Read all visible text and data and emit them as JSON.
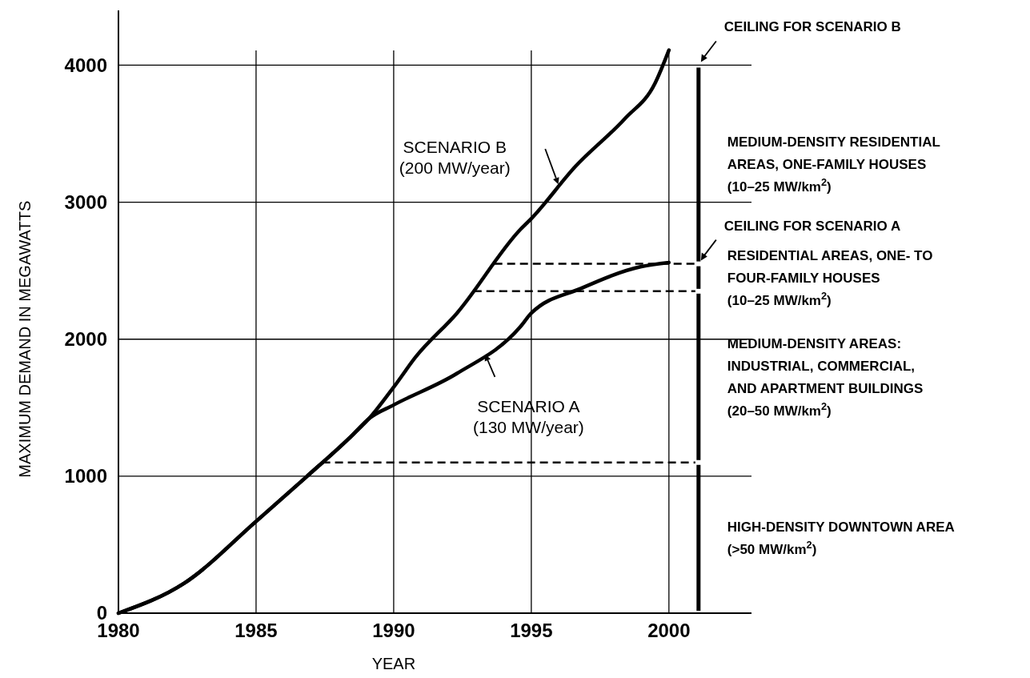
{
  "chart_data": {
    "type": "line",
    "xlabel": "YEAR",
    "ylabel": "MAXIMUM DEMAND IN MEGAWATTS",
    "xlim": [
      1980,
      2003
    ],
    "ylim": [
      0,
      4400
    ],
    "xticks": [
      1980,
      1985,
      1990,
      1995,
      2000
    ],
    "yticks": [
      0,
      1000,
      2000,
      3000,
      4000
    ],
    "grid": true,
    "series": [
      {
        "color": "#000000",
        "x": [
          1980,
          1982.4,
          1985,
          1986.8,
          1988.5,
          1989.1,
          1990,
          1992.3,
          1994.6,
          1995,
          1996.8,
          1999,
          2000
        ],
        "values": [
          0,
          220,
          670,
          990,
          1300,
          1420,
          1520,
          1750,
          2090,
          2190,
          2370,
          2530,
          2560
        ]
      },
      {
        "color": "#000000",
        "x": [
          1980,
          1982.4,
          1985,
          1986.8,
          1988.5,
          1989.1,
          1990,
          1990.8,
          1992.3,
          1994.6,
          1995,
          1996.6,
          1998.4,
          1999.5,
          2000
        ],
        "values": [
          0,
          220,
          670,
          990,
          1300,
          1420,
          1650,
          1870,
          2190,
          2800,
          2880,
          3260,
          3610,
          3870,
          4110
        ]
      }
    ],
    "ref_lines": [
      {
        "axis": "y",
        "value": 2550,
        "line_style": "dashed",
        "color": "#000000",
        "label": "CEILING FOR SCENARIO A"
      },
      {
        "axis": "y",
        "value": 2350,
        "line_style": "dashed",
        "color": "#000000"
      },
      {
        "axis": "y",
        "value": 1100,
        "line_style": "dashed",
        "color": "#000000"
      }
    ],
    "annotations": [
      "CEILING FOR SCENARIO B",
      {
        "text": "SCENARIO A (130 MW/year)",
        "x": 1993.3,
        "y": 1900
      },
      {
        "text": "SCENARIO B (200 MW/year)",
        "x": 1996,
        "y": 3120
      },
      "MEDIUM-DENSITY RESIDENTIAL\nAREAS, ONE-FAMILY HOUSES\n(10–25 MW/km$^{2}$)",
      "RESIDENTIAL AREAS, ONE- TO\nFOUR-FAMILY HOUSES\n(10–25 MW/km$^{2}$)",
      "MEDIUM-DENSITY AREAS:\nINDUSTRIAL, COMMERCIAL,\nAND APARTMENT BUILDINGS\n(20–50 MW/km$^{2}$)",
      "HIGH-DENSITY DOWNTOWN AREA\n(>50 MW/km$^{2}$)"
    ]
  }
}
